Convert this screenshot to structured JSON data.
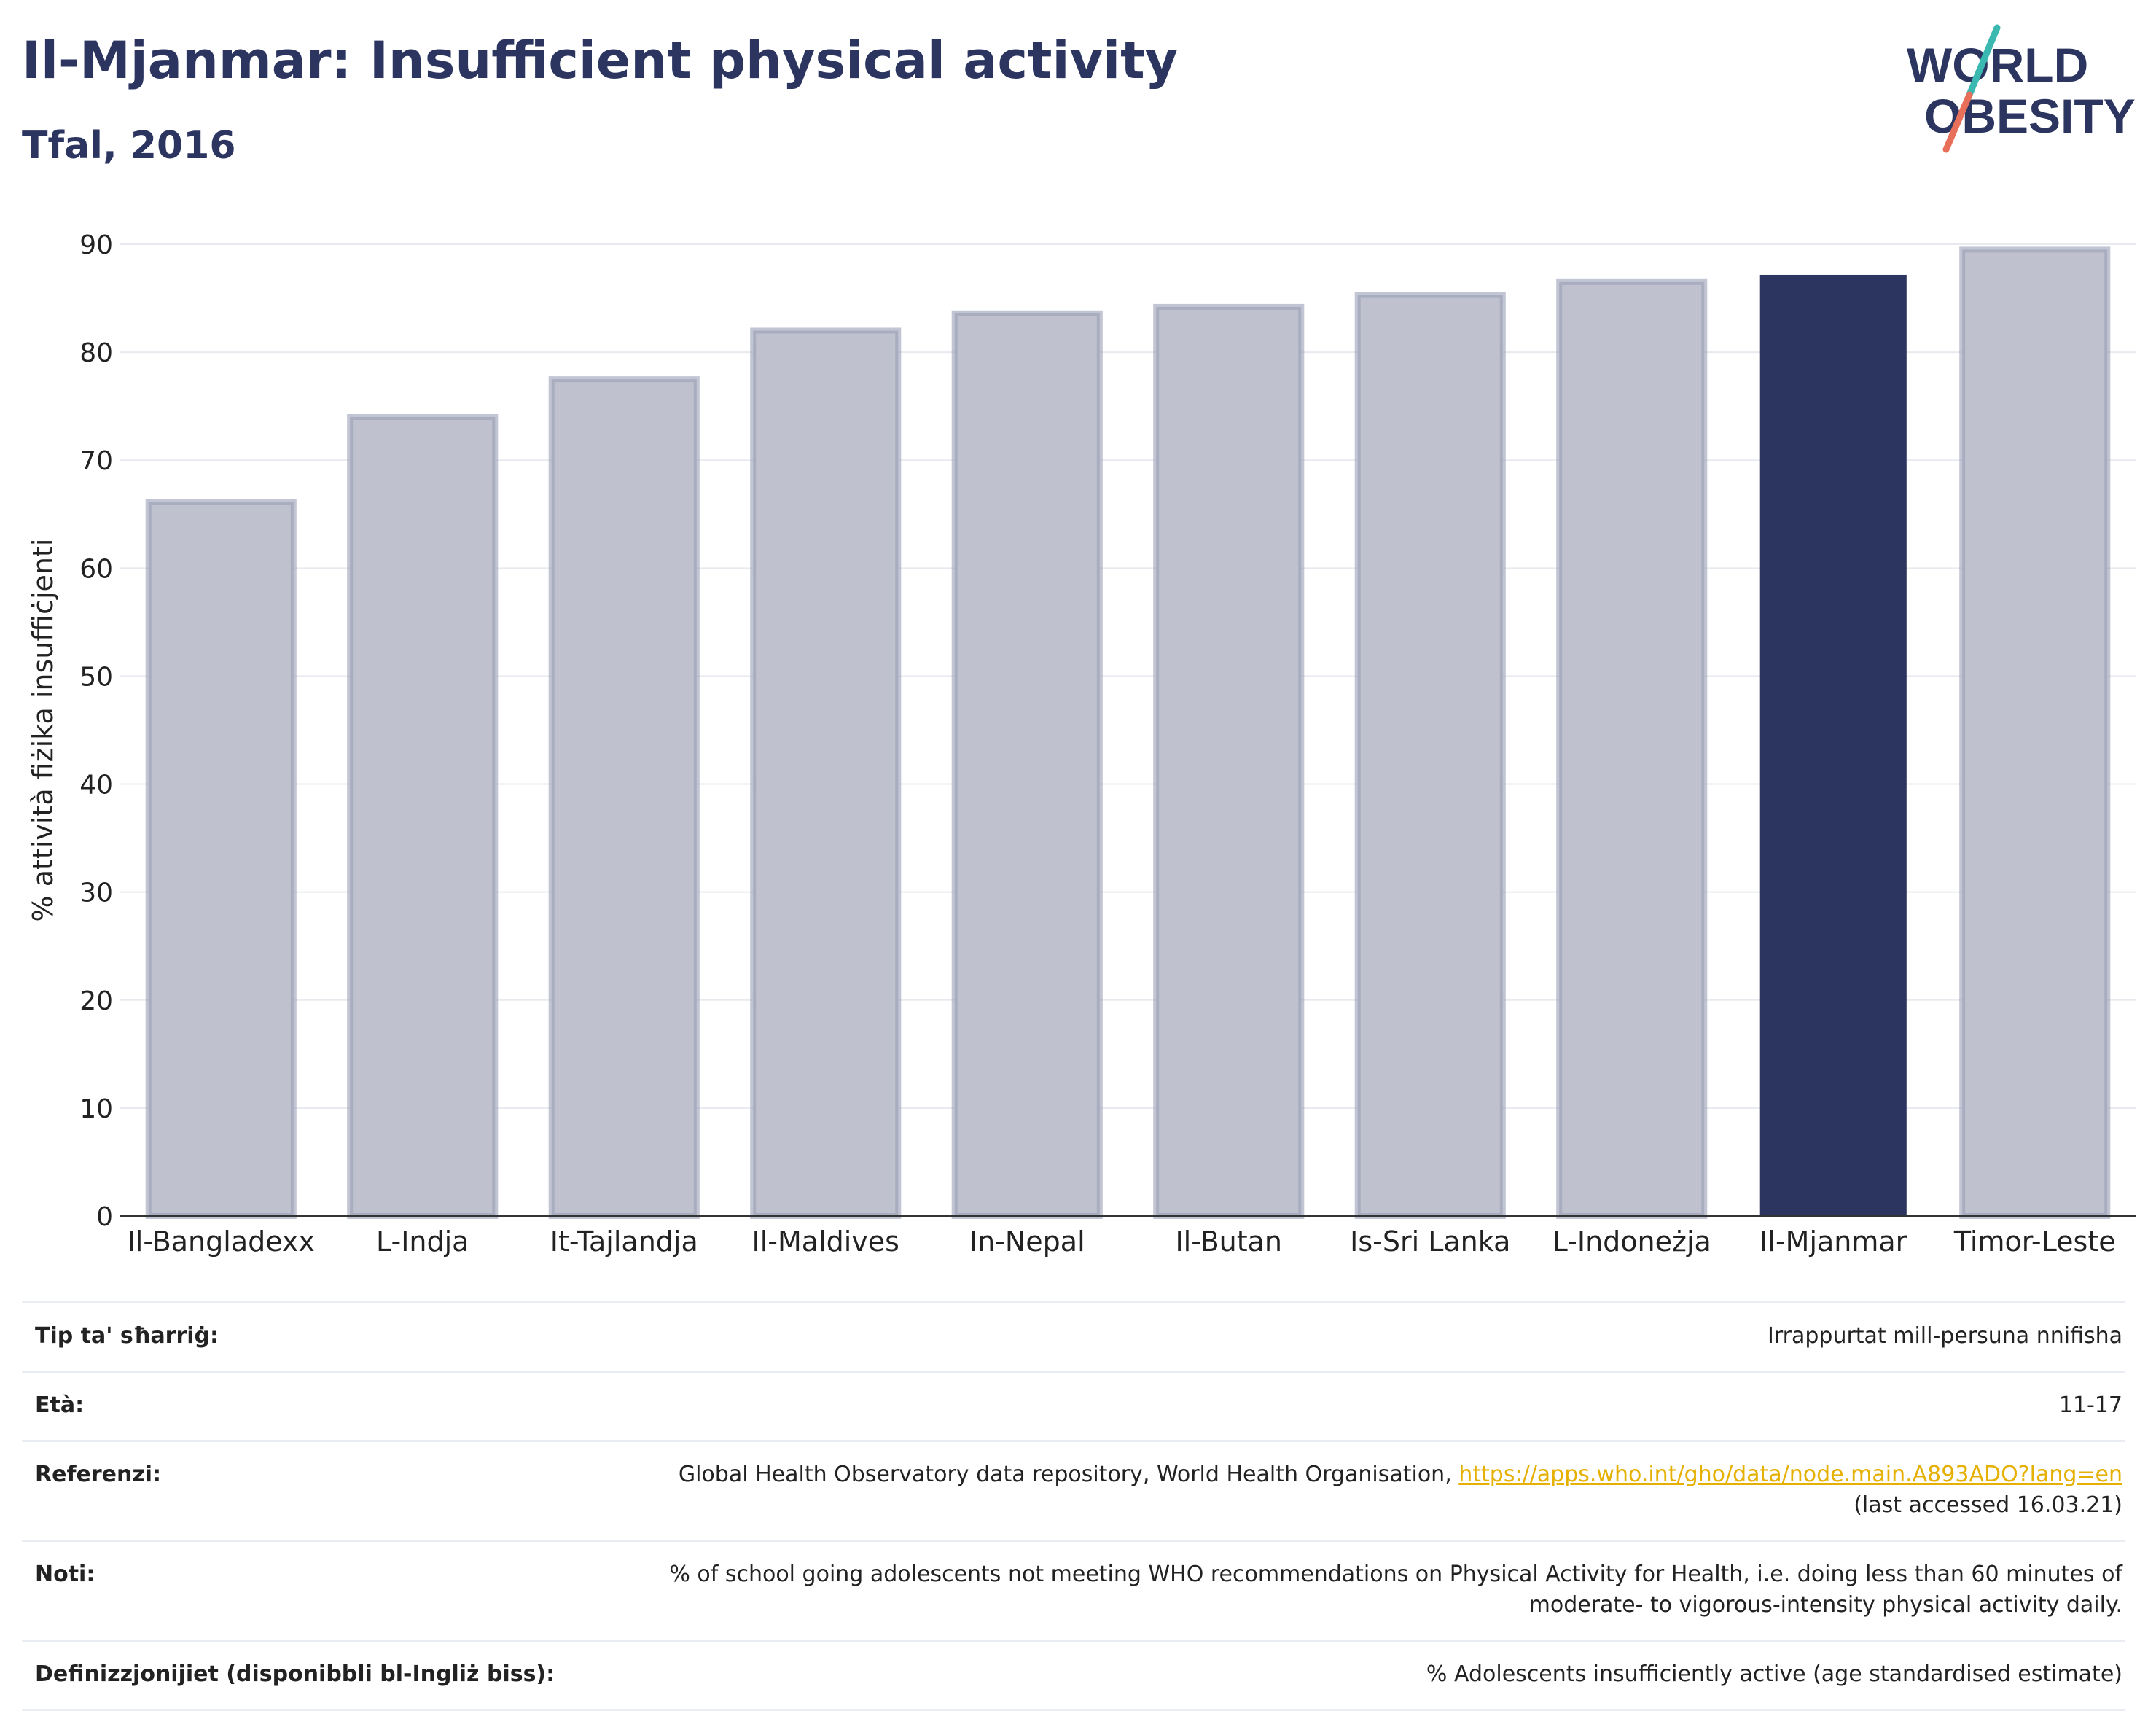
{
  "header": {
    "title": "Il-Mjanmar: Insufficient physical activity",
    "subtitle": "Tfal, 2016"
  },
  "logo": {
    "line1": "WORLD",
    "line2": "OBESITY"
  },
  "chart_data": {
    "type": "bar",
    "categories": [
      "Il-Bangladexx",
      "L-Indja",
      "It-Tajlandja",
      "Il-Maldives",
      "In-Nepal",
      "Il-Butan",
      "Is-Sri Lanka",
      "L-Indoneżja",
      "Il-Mjanmar",
      "Timor-Leste"
    ],
    "values": [
      66.1,
      74.0,
      77.5,
      82.0,
      83.6,
      84.2,
      85.3,
      86.5,
      87.1,
      89.5
    ],
    "highlight": "Il-Mjanmar",
    "ylabel": "% attività fiżika insuffiċjenti",
    "xlabel": "",
    "ylim": [
      0,
      90
    ],
    "yticks": [
      0,
      10,
      20,
      30,
      40,
      50,
      60,
      70,
      80,
      90
    ],
    "grid": true,
    "colors": {
      "bar": "#bfc2ce",
      "bar_outline": "#9a9fb6",
      "highlight": "#2b3560"
    }
  },
  "info": {
    "rows": [
      {
        "label": "Tip ta' sħarriġ:",
        "value": "Irrappurtat mill-persuna nnifisha"
      },
      {
        "label": "Età:",
        "value": "11-17"
      },
      {
        "label": "Referenzi:",
        "value": "Global Health Observatory data repository, World Health Organisation, ",
        "link": "https://apps.who.int/gho/data/node.main.A893ADO?lang=en",
        "value2": "(last accessed 16.03.21)"
      },
      {
        "label": "Noti:",
        "value": "% of school going adolescents not meeting WHO recommendations on Physical Activity for Health, i.e. doing less than 60 minutes of moderate- to vigorous-intensity physical activity daily."
      },
      {
        "label": "Definizzjonijiet (disponibbli bl-Ingliż biss):",
        "value": "% Adolescents insufficiently active (age standardised estimate)"
      }
    ]
  },
  "colors": {
    "title": "#2b3560",
    "link": "#e5b000",
    "logo_teal": "#3bb8b0",
    "logo_red": "#e8705a"
  }
}
